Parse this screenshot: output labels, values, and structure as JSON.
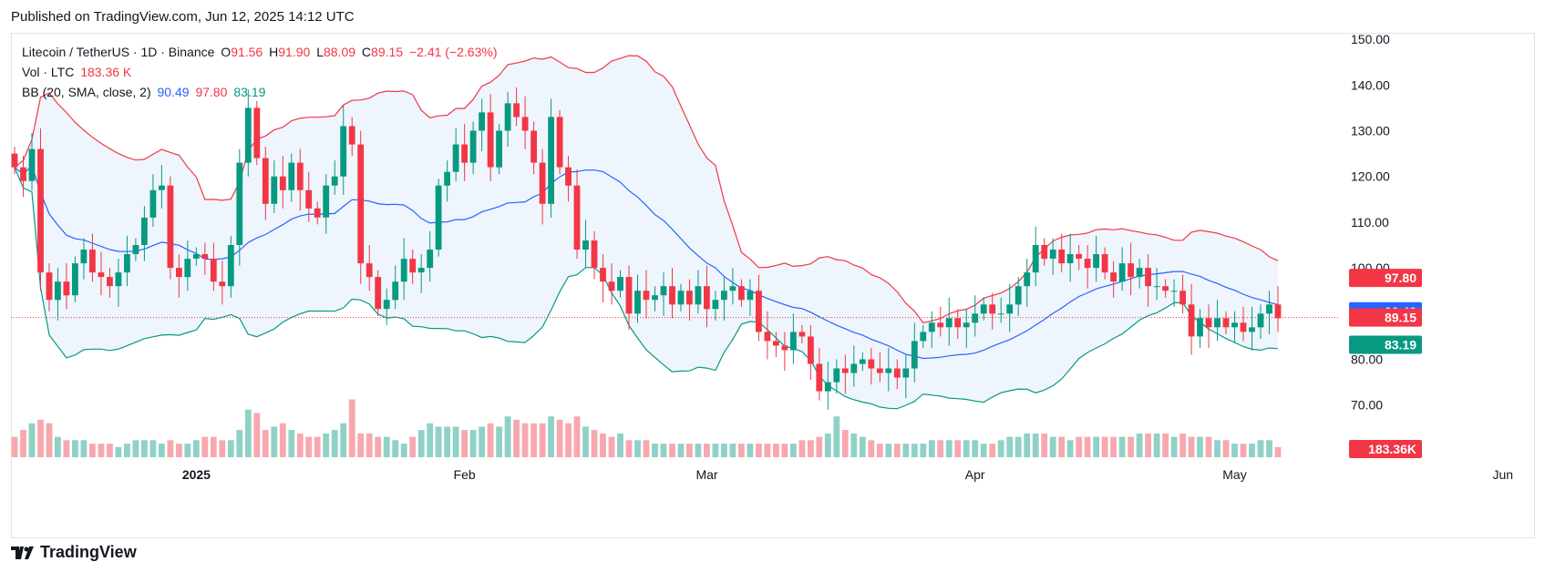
{
  "published": "Published on TradingView.com, Jun 12, 2025 14:12 UTC",
  "brand": "TradingView",
  "legend": {
    "symbol": "Litecoin / TetherUS · 1D · Binance",
    "o_label": "O",
    "o_value": "91.56",
    "h_label": "H",
    "h_value": "91.90",
    "l_label": "L",
    "l_value": "88.09",
    "c_label": "C",
    "c_value": "89.15",
    "change": "−2.41 (−2.63%)",
    "vol_label": "Vol · LTC",
    "vol_value": "183.36 K",
    "bb_label": "BB (20, SMA, close, 2)",
    "bb_basis": "90.49",
    "bb_upper": "97.80",
    "bb_lower": "83.19"
  },
  "colors": {
    "up": "#089981",
    "down": "#f23645",
    "vol_up": "#8fd1c6",
    "vol_down": "#f7a8ae",
    "bb_basis": "#2962ff",
    "bb_upper": "#f23645",
    "bb_lower": "#089981",
    "bb_fill": "#eef5fc"
  },
  "chart_data": {
    "type": "candlestick",
    "price_axis": {
      "min": 55,
      "max": 155,
      "ticks": [
        "60.00",
        "70.00",
        "80.00",
        "90.00",
        "100.00",
        "110.00",
        "120.00",
        "130.00",
        "140.00",
        "150.00"
      ]
    },
    "time_axis": [
      {
        "label": "2025",
        "date": "2025-01-01"
      },
      {
        "label": "Feb",
        "date": "2025-02-01"
      },
      {
        "label": "Mar",
        "date": "2025-03-01"
      },
      {
        "label": "Apr",
        "date": "2025-04-01"
      },
      {
        "label": "May",
        "date": "2025-05-01"
      },
      {
        "label": "Jun",
        "date": "2025-06-01"
      }
    ],
    "start_date": "2024-12-11",
    "closes": [
      122,
      119,
      126,
      99,
      93,
      97,
      94,
      101,
      104,
      99,
      98,
      96,
      99,
      103,
      105,
      111,
      117,
      118,
      100,
      98,
      102,
      103,
      102,
      97,
      96,
      105,
      123,
      135,
      124,
      114,
      120,
      117,
      123,
      117,
      113,
      111,
      118,
      120,
      131,
      127,
      101,
      98,
      91,
      93,
      97,
      102,
      99,
      100,
      104,
      118,
      121,
      127,
      123,
      130,
      134,
      122,
      130,
      136,
      133,
      130,
      123,
      114,
      133,
      122,
      118,
      104,
      106,
      100,
      97,
      95,
      98,
      90,
      95,
      93,
      94,
      96,
      92,
      95,
      92,
      96,
      91,
      93,
      95,
      96,
      93,
      95,
      86,
      84,
      83,
      82,
      86,
      85,
      79,
      73,
      75,
      78,
      77,
      79,
      80,
      78,
      77,
      78,
      76,
      78,
      84,
      86,
      88,
      87,
      89,
      87,
      88,
      90,
      92,
      90,
      90,
      92,
      96,
      99,
      105,
      102,
      104,
      101,
      103,
      102,
      100,
      103,
      99,
      97,
      101,
      98,
      100,
      96,
      96,
      95,
      95,
      92,
      85,
      89,
      87,
      89,
      87,
      88,
      86,
      87,
      90,
      92,
      89
    ],
    "volumes": [
      6,
      8,
      10,
      11,
      10,
      6,
      5,
      5,
      5,
      4,
      4,
      4,
      3,
      4,
      5,
      5,
      5,
      4,
      5,
      4,
      4,
      5,
      6,
      6,
      5,
      5,
      8,
      14,
      13,
      8,
      9,
      10,
      8,
      7,
      6,
      6,
      7,
      8,
      10,
      17,
      7,
      7,
      6,
      6,
      5,
      4,
      6,
      8,
      10,
      9,
      9,
      9,
      8,
      8,
      9,
      10,
      9,
      12,
      11,
      10,
      10,
      10,
      12,
      11,
      10,
      12,
      9,
      8,
      7,
      6,
      7,
      5,
      5,
      5,
      4,
      4,
      4,
      4,
      4,
      4,
      4,
      4,
      4,
      4,
      4,
      4,
      4,
      4,
      4,
      4,
      4,
      5,
      5,
      6,
      7,
      12,
      8,
      7,
      6,
      5,
      4,
      4,
      4,
      4,
      4,
      4,
      5,
      5,
      5,
      5,
      5,
      5,
      4,
      4,
      5,
      6,
      6,
      7,
      7,
      7,
      6,
      6,
      5,
      6,
      6,
      6,
      6,
      6,
      6,
      6,
      7,
      7,
      7,
      7,
      6,
      7,
      6,
      6,
      6,
      5,
      5,
      4,
      4,
      4,
      5,
      5,
      3
    ],
    "bb_last": {
      "upper": 97.8,
      "basis": 90.49,
      "lower": 83.19
    },
    "last_close": 89.15,
    "last_volume": "183.36K",
    "volume_axis_max": 30
  }
}
